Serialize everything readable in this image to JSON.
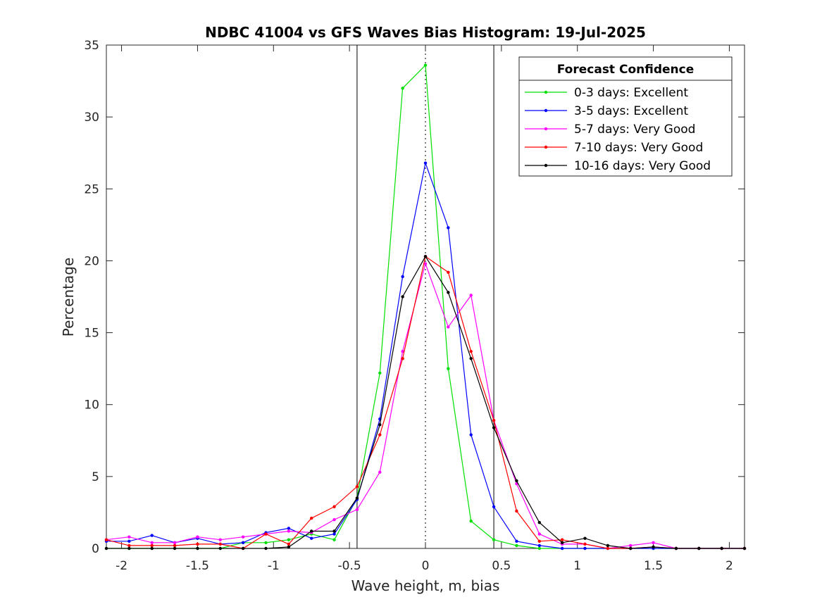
{
  "chart_data": {
    "type": "line",
    "title": "NDBC 41004 vs GFS Waves Bias Histogram: 19-Jul-2025",
    "xlabel": "Wave height, m, bias",
    "ylabel": "Percentage",
    "xlim": [
      -2.1,
      2.1
    ],
    "ylim": [
      0,
      35
    ],
    "xticks": [
      -2,
      -1.5,
      -1,
      -0.5,
      0,
      0.5,
      1,
      1.5,
      2
    ],
    "xtick_labels": [
      "-2",
      "-1.5",
      "-1",
      "-0.5",
      "0",
      "0.5",
      "1",
      "1.5",
      "2"
    ],
    "yticks": [
      0,
      5,
      10,
      15,
      20,
      25,
      30,
      35
    ],
    "ytick_labels": [
      "0",
      "5",
      "10",
      "15",
      "20",
      "25",
      "30",
      "35"
    ],
    "grid": false,
    "legend_title": "Forecast Confidence",
    "legend_location": "top-right",
    "reference_lines": {
      "solid_vertical": [
        -0.45,
        0.45
      ],
      "dotted_vertical": [
        0
      ]
    },
    "x": [
      -2.1,
      -1.95,
      -1.8,
      -1.65,
      -1.5,
      -1.35,
      -1.2,
      -1.05,
      -0.9,
      -0.75,
      -0.6,
      -0.45,
      -0.3,
      -0.15,
      0,
      0.15,
      0.3,
      0.45,
      0.6,
      0.75,
      0.9,
      1.05,
      1.2,
      1.35,
      1.5,
      1.65,
      1.8,
      1.95,
      2.1
    ],
    "series": [
      {
        "name": "0-3 days: Excellent",
        "color": "#00e000",
        "values": [
          0,
          0,
          0,
          0,
          0,
          0,
          0.4,
          0.4,
          0.6,
          1.0,
          0.6,
          3.5,
          12.2,
          32.0,
          33.6,
          12.5,
          1.9,
          0.6,
          0.2,
          0,
          0,
          0,
          0,
          0,
          0,
          0,
          0,
          0,
          0
        ]
      },
      {
        "name": "3-5 days: Excellent",
        "color": "#0000ff",
        "values": [
          0.5,
          0.5,
          0.9,
          0.4,
          0.7,
          0.3,
          0.4,
          1.1,
          1.4,
          0.7,
          1.0,
          3.4,
          9.0,
          18.9,
          26.8,
          22.3,
          7.9,
          2.9,
          0.5,
          0.2,
          0,
          0,
          0,
          0,
          0,
          0,
          0,
          0,
          0
        ]
      },
      {
        "name": "5-7 days: Very Good",
        "color": "#ff00ff",
        "values": [
          0.6,
          0.8,
          0.4,
          0.4,
          0.8,
          0.6,
          0.8,
          1.0,
          1.2,
          1.1,
          2.0,
          2.7,
          5.3,
          13.7,
          19.8,
          15.4,
          17.6,
          8.9,
          4.5,
          1.0,
          0.3,
          0.3,
          0,
          0.2,
          0.4,
          0,
          0,
          0,
          0
        ]
      },
      {
        "name": "7-10 days: Very Good",
        "color": "#ff0000",
        "values": [
          0.6,
          0.2,
          0.2,
          0.2,
          0.3,
          0.3,
          0,
          1.0,
          0.3,
          2.1,
          2.9,
          4.3,
          7.9,
          13.2,
          20.3,
          19.2,
          13.7,
          8.9,
          2.6,
          0.5,
          0.6,
          0.3,
          0,
          0,
          0.1,
          0,
          0,
          0,
          0
        ]
      },
      {
        "name": "10-16 days: Very Good",
        "color": "#000000",
        "values": [
          0,
          0,
          0,
          0,
          0,
          0,
          0,
          0,
          0.1,
          1.2,
          1.2,
          3.5,
          8.6,
          17.5,
          20.3,
          17.8,
          13.2,
          8.4,
          4.7,
          1.8,
          0.4,
          0.7,
          0.2,
          0,
          0.1,
          0,
          0,
          0,
          0
        ]
      }
    ]
  }
}
